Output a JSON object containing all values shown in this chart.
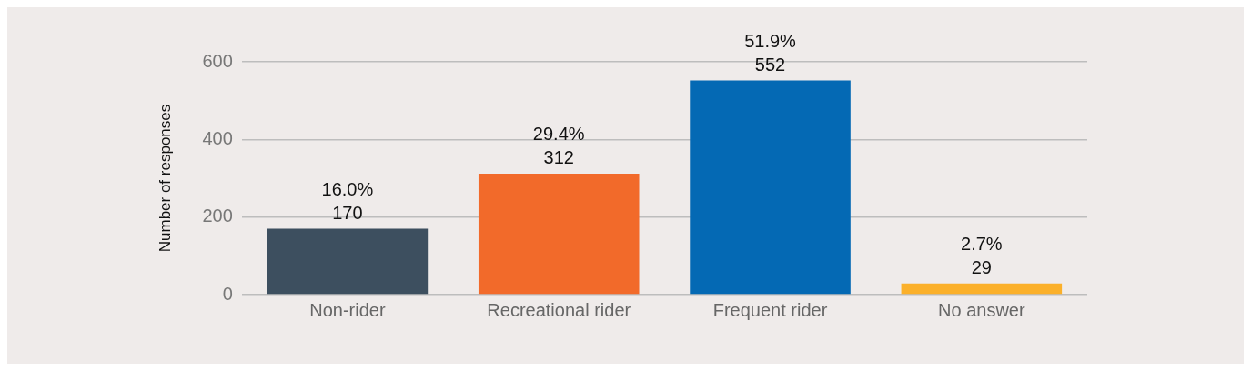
{
  "chart_data": {
    "type": "bar",
    "ylabel": "Number of responses",
    "categories": [
      "Non-rider",
      "Recreational rider",
      "Frequent rider",
      "No answer"
    ],
    "values": [
      170,
      312,
      552,
      29
    ],
    "colors": [
      "#3d4f5f",
      "#f26a2a",
      "#0469b4",
      "#fbb02a"
    ],
    "value_labels": [
      "16.0%\n170",
      "29.4%\n312",
      "51.9%\n552",
      "2.7%\n29"
    ],
    "ylim": [
      0,
      600
    ],
    "yticks": [
      0,
      200,
      400,
      600
    ],
    "grid": "y",
    "legend": false
  }
}
